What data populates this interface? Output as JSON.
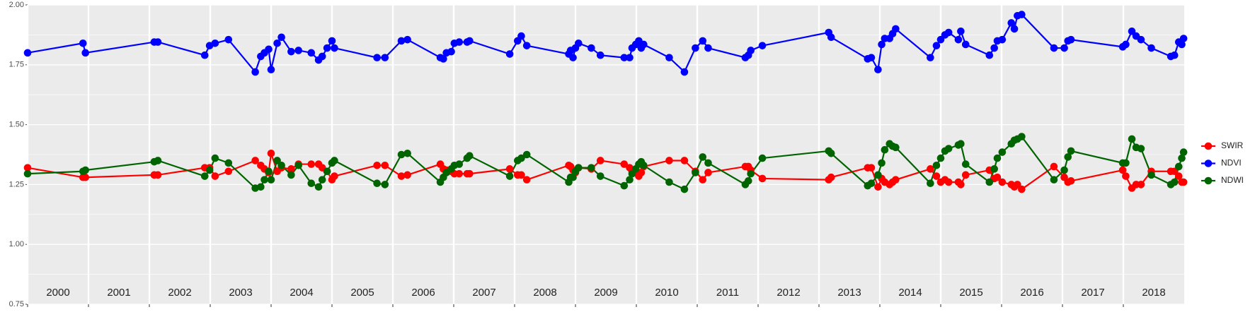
{
  "chart_data": {
    "type": "line",
    "x": [
      2000.0,
      2000.91,
      2000.95,
      2002.08,
      2002.14,
      2002.91,
      2002.99,
      2003.08,
      2003.3,
      2003.74,
      2003.83,
      2003.89,
      2003.96,
      2004.0,
      2004.1,
      2004.17,
      2004.33,
      2004.45,
      2004.66,
      2004.78,
      2004.84,
      2004.92,
      2005.0,
      2005.04,
      2005.74,
      2005.87,
      2006.14,
      2006.24,
      2006.78,
      2006.83,
      2006.88,
      2006.96,
      2007.01,
      2007.09,
      2007.22,
      2007.26,
      2007.92,
      2008.05,
      2008.11,
      2008.2,
      2008.89,
      2008.92,
      2008.96,
      2009.0,
      2009.05,
      2009.26,
      2009.41,
      2009.8,
      2009.89,
      2009.93,
      2009.99,
      2010.04,
      2010.08,
      2010.12,
      2010.54,
      2010.79,
      2010.97,
      2011.09,
      2011.18,
      2011.79,
      2011.84,
      2011.88,
      2012.07,
      2013.16,
      2013.2,
      2013.8,
      2013.86,
      2013.97,
      2014.03,
      2014.08,
      2014.16,
      2014.21,
      2014.26,
      2014.83,
      2014.93,
      2015.0,
      2015.07,
      2015.13,
      2015.29,
      2015.33,
      2015.41,
      2015.8,
      2015.88,
      2015.93,
      2016.01,
      2016.16,
      2016.21,
      2016.26,
      2016.33,
      2016.86,
      2017.03,
      2017.09,
      2017.14,
      2017.99,
      2018.04,
      2018.14,
      2018.21,
      2018.29,
      2018.46,
      2018.78,
      2018.84,
      2018.91,
      2018.96,
      2018.99
    ],
    "series": [
      {
        "name": "SWIR",
        "color": "#ff0000",
        "values": [
          1.32,
          1.28,
          1.28,
          1.29,
          1.29,
          1.32,
          1.32,
          1.285,
          1.305,
          1.35,
          1.33,
          1.315,
          1.3,
          1.38,
          1.305,
          1.32,
          1.315,
          1.335,
          1.335,
          1.335,
          1.32,
          1.305,
          1.27,
          1.285,
          1.33,
          1.33,
          1.285,
          1.29,
          1.335,
          1.315,
          1.31,
          1.305,
          1.295,
          1.295,
          1.295,
          1.295,
          1.315,
          1.29,
          1.29,
          1.27,
          1.33,
          1.325,
          1.31,
          1.3,
          1.32,
          1.315,
          1.35,
          1.335,
          1.32,
          1.305,
          1.3,
          1.285,
          1.3,
          1.325,
          1.35,
          1.35,
          1.305,
          1.27,
          1.3,
          1.325,
          1.325,
          1.31,
          1.275,
          1.27,
          1.28,
          1.32,
          1.32,
          1.24,
          1.275,
          1.26,
          1.25,
          1.26,
          1.27,
          1.315,
          1.285,
          1.26,
          1.27,
          1.26,
          1.26,
          1.25,
          1.29,
          1.31,
          1.275,
          1.28,
          1.26,
          1.25,
          1.24,
          1.25,
          1.23,
          1.325,
          1.28,
          1.26,
          1.265,
          1.31,
          1.285,
          1.235,
          1.25,
          1.25,
          1.305,
          1.305,
          1.305,
          1.285,
          1.26,
          1.26
        ]
      },
      {
        "name": "NDVI",
        "color": "#0000ff",
        "values": [
          1.8,
          1.84,
          1.8,
          1.845,
          1.845,
          1.79,
          1.83,
          1.84,
          1.855,
          1.72,
          1.785,
          1.8,
          1.815,
          1.73,
          1.84,
          1.865,
          1.805,
          1.81,
          1.8,
          1.77,
          1.785,
          1.82,
          1.85,
          1.82,
          1.78,
          1.78,
          1.85,
          1.855,
          1.78,
          1.775,
          1.8,
          1.805,
          1.84,
          1.845,
          1.845,
          1.85,
          1.795,
          1.85,
          1.87,
          1.83,
          1.795,
          1.81,
          1.78,
          1.82,
          1.84,
          1.82,
          1.79,
          1.78,
          1.78,
          1.82,
          1.835,
          1.85,
          1.82,
          1.835,
          1.78,
          1.72,
          1.82,
          1.85,
          1.82,
          1.78,
          1.79,
          1.81,
          1.83,
          1.885,
          1.865,
          1.775,
          1.78,
          1.73,
          1.835,
          1.86,
          1.86,
          1.88,
          1.9,
          1.78,
          1.83,
          1.855,
          1.875,
          1.885,
          1.855,
          1.89,
          1.835,
          1.79,
          1.82,
          1.85,
          1.855,
          1.925,
          1.9,
          1.955,
          1.96,
          1.82,
          1.82,
          1.85,
          1.855,
          1.825,
          1.835,
          1.89,
          1.87,
          1.855,
          1.82,
          1.785,
          1.79,
          1.845,
          1.835,
          1.86
        ]
      },
      {
        "name": "NDWI",
        "color": "#006400",
        "values": [
          1.295,
          1.305,
          1.31,
          1.345,
          1.35,
          1.285,
          1.31,
          1.36,
          1.34,
          1.235,
          1.24,
          1.27,
          1.305,
          1.27,
          1.35,
          1.33,
          1.29,
          1.33,
          1.255,
          1.24,
          1.27,
          1.305,
          1.34,
          1.35,
          1.255,
          1.25,
          1.375,
          1.38,
          1.26,
          1.28,
          1.3,
          1.315,
          1.33,
          1.335,
          1.36,
          1.37,
          1.285,
          1.35,
          1.36,
          1.375,
          1.26,
          1.28,
          1.28,
          1.305,
          1.32,
          1.32,
          1.285,
          1.245,
          1.27,
          1.295,
          1.315,
          1.335,
          1.345,
          1.33,
          1.26,
          1.23,
          1.3,
          1.365,
          1.34,
          1.25,
          1.265,
          1.295,
          1.36,
          1.39,
          1.38,
          1.245,
          1.255,
          1.29,
          1.34,
          1.395,
          1.42,
          1.41,
          1.405,
          1.255,
          1.33,
          1.36,
          1.39,
          1.4,
          1.415,
          1.42,
          1.335,
          1.26,
          1.315,
          1.36,
          1.385,
          1.42,
          1.435,
          1.44,
          1.45,
          1.27,
          1.31,
          1.365,
          1.39,
          1.34,
          1.34,
          1.44,
          1.405,
          1.4,
          1.29,
          1.25,
          1.26,
          1.325,
          1.36,
          1.385
        ]
      }
    ],
    "xlim": [
      2000,
      2019
    ],
    "xticks": [
      {
        "value": 2000.5,
        "label": "2000"
      },
      {
        "value": 2001.5,
        "label": "2001"
      },
      {
        "value": 2002.5,
        "label": "2002"
      },
      {
        "value": 2003.5,
        "label": "2003"
      },
      {
        "value": 2004.5,
        "label": "2004"
      },
      {
        "value": 2005.5,
        "label": "2005"
      },
      {
        "value": 2006.5,
        "label": "2006"
      },
      {
        "value": 2007.5,
        "label": "2007"
      },
      {
        "value": 2008.5,
        "label": "2008"
      },
      {
        "value": 2009.5,
        "label": "2009"
      },
      {
        "value": 2010.5,
        "label": "2010"
      },
      {
        "value": 2011.5,
        "label": "2011"
      },
      {
        "value": 2012.5,
        "label": "2012"
      },
      {
        "value": 2013.5,
        "label": "2013"
      },
      {
        "value": 2014.5,
        "label": "2014"
      },
      {
        "value": 2015.5,
        "label": "2015"
      },
      {
        "value": 2016.5,
        "label": "2016"
      },
      {
        "value": 2017.5,
        "label": "2017"
      },
      {
        "value": 2018.5,
        "label": "2018"
      }
    ],
    "x_grid": [
      2000,
      2001,
      2002,
      2003,
      2004,
      2005,
      2006,
      2007,
      2008,
      2009,
      2010,
      2011,
      2012,
      2013,
      2014,
      2015,
      2016,
      2017,
      2018
    ],
    "ylim": [
      0.75,
      2.0
    ],
    "yticks": [
      0.75,
      {
        "value": 1.0,
        "label": "1.00"
      },
      1.25,
      {
        "value": 1.5,
        "label": "1.50"
      },
      1.75,
      {
        "value": 2.0,
        "label": "2.00"
      }
    ],
    "grid": true,
    "legend": "right"
  }
}
